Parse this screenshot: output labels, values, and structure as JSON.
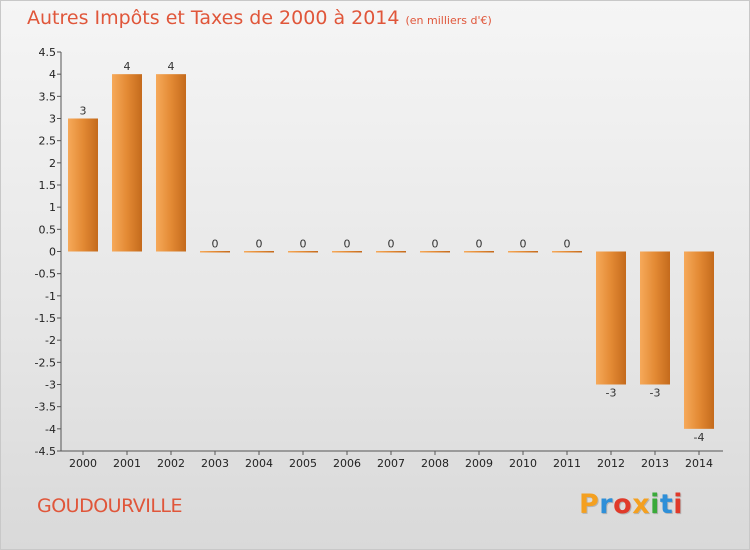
{
  "title": "Autres Impôts et Taxes de 2000 à 2014",
  "unit_note": "(en milliers d'€)",
  "commune": "GOUDOURVILLE",
  "logo": {
    "letters": [
      "P",
      "r",
      "o",
      "x",
      "i",
      "t",
      "i"
    ],
    "colors": [
      "#f4a020",
      "#2e8fd8",
      "#e03a2a",
      "#f4a020",
      "#3aaa3a",
      "#2e8fd8",
      "#e03a2a"
    ]
  },
  "colors": {
    "bar": "#e38a34",
    "bar_dark": "#c46a1c",
    "bar_light": "#f6a95a",
    "title": "#e0563a"
  },
  "chart_data": {
    "type": "bar",
    "categories": [
      "2000",
      "2001",
      "2002",
      "2003",
      "2004",
      "2005",
      "2006",
      "2007",
      "2008",
      "2009",
      "2010",
      "2011",
      "2012",
      "2013",
      "2014"
    ],
    "values": [
      3,
      4,
      4,
      0,
      0,
      0,
      0,
      0,
      0,
      0,
      0,
      0,
      -3,
      -3,
      -4
    ],
    "data_labels": [
      "3",
      "4",
      "4",
      "0",
      "0",
      "0",
      "0",
      "0",
      "0",
      "0",
      "0",
      "0",
      "-3",
      "-3",
      "-4"
    ],
    "y_ticks": [
      4.5,
      4,
      3.5,
      3,
      2.5,
      2,
      1.5,
      1,
      0.5,
      0,
      -0.5,
      -1,
      -1.5,
      -2,
      -2.5,
      -3,
      -3.5,
      -4,
      -4.5
    ],
    "y_tick_labels": [
      "4.5",
      "4",
      "3.5",
      "3",
      "2.5",
      "2",
      "1.5",
      "1",
      "0.5",
      "0",
      "-0.5",
      "-1",
      "-1.5",
      "-2",
      "-2.5",
      "-3",
      "-3.5",
      "-4",
      "-4.5"
    ],
    "ylim": [
      -4.5,
      4.5
    ],
    "title": "Autres Impôts et Taxes de 2000 à 2014",
    "xlabel": "",
    "ylabel": "",
    "grid": false
  }
}
